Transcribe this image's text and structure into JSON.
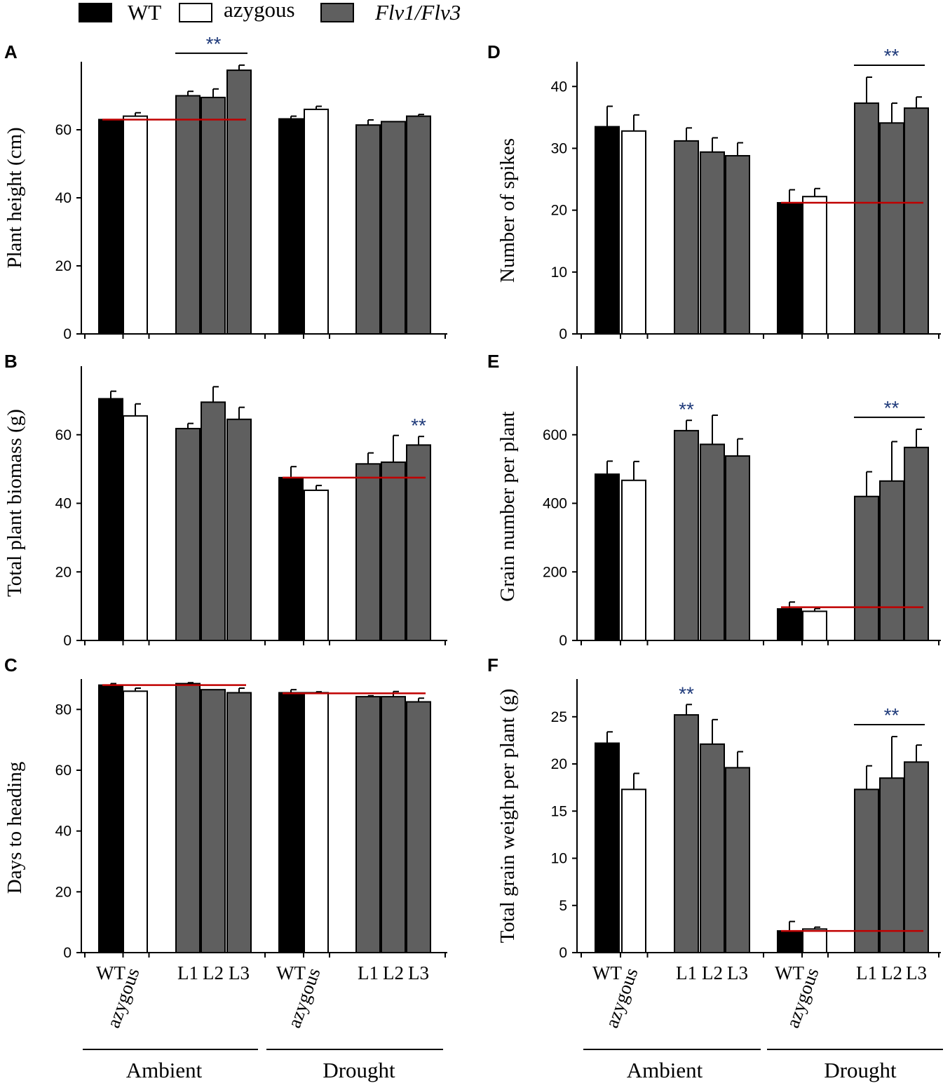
{
  "legend": {
    "items": [
      {
        "label": "WT",
        "color": "#000000",
        "italic": false
      },
      {
        "label": "azygous",
        "color": "#ffffff",
        "italic": false
      },
      {
        "label": "Flv1/Flv3",
        "color": "#5f5f5f",
        "italic": true
      }
    ]
  },
  "x_axis": {
    "tick_labels": [
      "WT",
      "azygous",
      "L1",
      "L2",
      "L3",
      "WT",
      "azygous",
      "L1",
      "L2",
      "L3"
    ],
    "group_labels": [
      "Ambient",
      "Drought"
    ]
  },
  "colors": {
    "wt": "#000000",
    "azygous": "#ffffff",
    "line": "#5f5f5f",
    "reference_line": "#c00000",
    "significance": "#1f3a7a",
    "axis": "#000000"
  },
  "chart_data": [
    {
      "panel": "A",
      "type": "bar",
      "ylabel": "Plant height (cm)",
      "ylim": [
        0,
        80
      ],
      "yticks": [
        0,
        20,
        40,
        60
      ],
      "categories": [
        "WT",
        "azygous",
        "L1",
        "L2",
        "L3",
        "WT",
        "azygous",
        "L1",
        "L2",
        "L3"
      ],
      "groups": [
        "Ambient",
        "Drought"
      ],
      "values": [
        63,
        64,
        70,
        69.5,
        77.5,
        63.2,
        66,
        61.4,
        62.4,
        64
      ],
      "errors": [
        0,
        1,
        1.3,
        2.5,
        1.5,
        0.8,
        0.9,
        1.5,
        0,
        0.5
      ],
      "reference_value": 63,
      "reference_span": [
        0,
        4
      ],
      "significance": [
        {
          "label": "**",
          "bar": true,
          "from": 2,
          "to": 4
        }
      ]
    },
    {
      "panel": "B",
      "type": "bar",
      "ylabel": "Total plant biomass (g)",
      "ylim": [
        0,
        80
      ],
      "yticks": [
        0,
        20,
        40,
        60
      ],
      "categories": [
        "WT",
        "azygous",
        "L1",
        "L2",
        "L3",
        "WT",
        "azygous",
        "L1",
        "L2",
        "L3"
      ],
      "groups": [
        "Ambient",
        "Drought"
      ],
      "values": [
        70.5,
        65.5,
        61.8,
        69.5,
        64.5,
        47.5,
        43.8,
        51.5,
        52,
        57
      ],
      "errors": [
        2.2,
        3.5,
        1.5,
        4.5,
        3.5,
        3.2,
        1.4,
        3.2,
        7.8,
        2.5
      ],
      "reference_value": 47.5,
      "reference_span": [
        5,
        9
      ],
      "significance": [
        {
          "label": "**",
          "bar": false,
          "from": 9,
          "to": 9
        }
      ]
    },
    {
      "panel": "C",
      "type": "bar",
      "ylabel": "Days to heading",
      "ylim": [
        0,
        90
      ],
      "yticks": [
        0,
        20,
        40,
        60,
        80
      ],
      "categories": [
        "WT",
        "azygous",
        "L1",
        "L2",
        "L3",
        "WT",
        "azygous",
        "L1",
        "L2",
        "L3"
      ],
      "groups": [
        "Ambient",
        "Drought"
      ],
      "values": [
        88,
        86,
        88.5,
        86.5,
        85.5,
        85.5,
        85.5,
        84.2,
        84.2,
        82.5
      ],
      "errors": [
        0.5,
        1,
        0.3,
        0,
        1.5,
        1,
        0.3,
        0.3,
        1.7,
        1.2
      ],
      "reference_lines": [
        {
          "value": 88,
          "span": [
            0,
            4
          ]
        },
        {
          "value": 85.3,
          "span": [
            5,
            9
          ]
        }
      ],
      "significance": []
    },
    {
      "panel": "D",
      "type": "bar",
      "ylabel": "Number of spikes",
      "ylim": [
        0,
        44
      ],
      "yticks": [
        0,
        10,
        20,
        30,
        40
      ],
      "categories": [
        "WT",
        "azygous",
        "L1",
        "L2",
        "L3",
        "WT",
        "azygous",
        "L1",
        "L2",
        "L3"
      ],
      "groups": [
        "Ambient",
        "Drought"
      ],
      "values": [
        33.5,
        32.8,
        31.2,
        29.4,
        28.8,
        21.2,
        22.2,
        37.3,
        34.1,
        36.5
      ],
      "errors": [
        3.3,
        2.6,
        2.1,
        2.3,
        2.1,
        2.1,
        1.3,
        4.2,
        3.2,
        1.8
      ],
      "reference_value": 21.2,
      "reference_span": [
        5,
        9
      ],
      "significance": [
        {
          "label": "**",
          "bar": true,
          "from": 7,
          "to": 9
        }
      ]
    },
    {
      "panel": "E",
      "type": "bar",
      "ylabel": "Grain number per plant",
      "ylim": [
        0,
        800
      ],
      "yticks": [
        0,
        200,
        400,
        600
      ],
      "categories": [
        "WT",
        "azygous",
        "L1",
        "L2",
        "L3",
        "WT",
        "azygous",
        "L1",
        "L2",
        "L3"
      ],
      "groups": [
        "Ambient",
        "Drought"
      ],
      "values": [
        485,
        467,
        612,
        572,
        538,
        92,
        85,
        420,
        465,
        563
      ],
      "errors": [
        38,
        55,
        30,
        85,
        50,
        20,
        8,
        72,
        115,
        53
      ],
      "reference_value": 97,
      "reference_span": [
        5,
        9
      ],
      "significance": [
        {
          "label": "**",
          "bar": false,
          "from": 2,
          "to": 2
        },
        {
          "label": "**",
          "bar": true,
          "from": 7,
          "to": 9
        }
      ]
    },
    {
      "panel": "F",
      "type": "bar",
      "ylabel": "Total grain weight per plant (g)",
      "ylim": [
        0,
        29
      ],
      "yticks": [
        0,
        5,
        10,
        15,
        20,
        25
      ],
      "categories": [
        "WT",
        "azygous",
        "L1",
        "L2",
        "L3",
        "WT",
        "azygous",
        "L1",
        "L2",
        "L3"
      ],
      "groups": [
        "Ambient",
        "Drought"
      ],
      "values": [
        22.2,
        17.3,
        25.2,
        22.1,
        19.6,
        2.3,
        2.5,
        17.3,
        18.5,
        20.2
      ],
      "errors": [
        1.2,
        1.7,
        1.1,
        2.6,
        1.7,
        1,
        0.2,
        2.5,
        4.4,
        1.8
      ],
      "reference_value": 2.3,
      "reference_span": [
        5,
        9
      ],
      "significance": [
        {
          "label": "**",
          "bar": false,
          "from": 2,
          "to": 2
        },
        {
          "label": "**",
          "bar": true,
          "from": 7,
          "to": 9
        }
      ]
    }
  ]
}
